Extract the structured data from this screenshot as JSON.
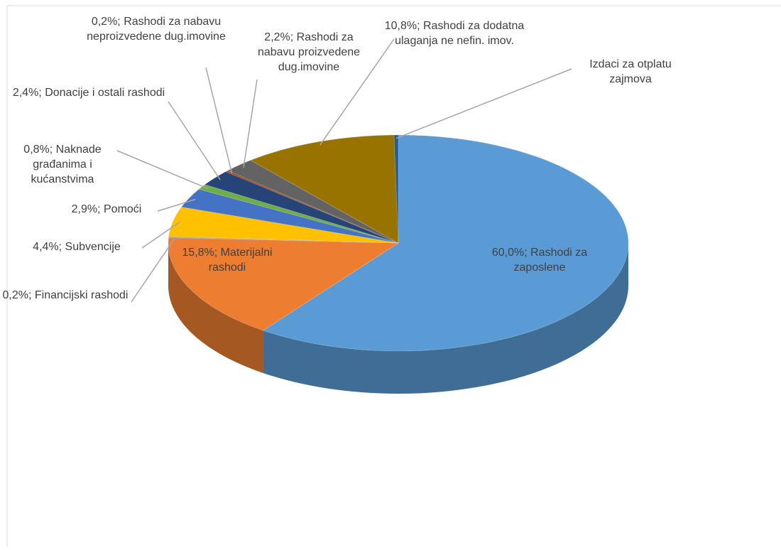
{
  "chart_data": {
    "type": "pie3d",
    "categories": [
      "Rashodi za zaposlene",
      "Materijalni rashodi",
      "Financijski rashodi",
      "Subvencije",
      "Pomoći",
      "Naknade građanima i kućanstvima",
      "Donacije i ostali rashodi",
      "Rashodi za nabavu neproizvedene dug.imovine",
      "Rashodi za nabavu proizvedene dug.imovine",
      "Rashodi za dodatna ulaganja ne nefin. imov.",
      "Izdaci za otplatu zajmova"
    ],
    "values": [
      60.0,
      15.8,
      0.2,
      4.4,
      2.9,
      0.8,
      2.4,
      0.2,
      2.2,
      10.8,
      0.3
    ],
    "value_labels": [
      "60,0%",
      "15,8%",
      "0,2%",
      "4,4%",
      "2,9%",
      "0,8%",
      "2,4%",
      "0,2%",
      "2,2%",
      "10,8%",
      null
    ],
    "label_separator": "; ",
    "colors": [
      "#5b9bd5",
      "#ed7d31",
      "#a5a5a5",
      "#ffc000",
      "#4472c4",
      "#70ad47",
      "#264478",
      "#9e480e",
      "#636363",
      "#997300",
      "#255e91"
    ]
  }
}
